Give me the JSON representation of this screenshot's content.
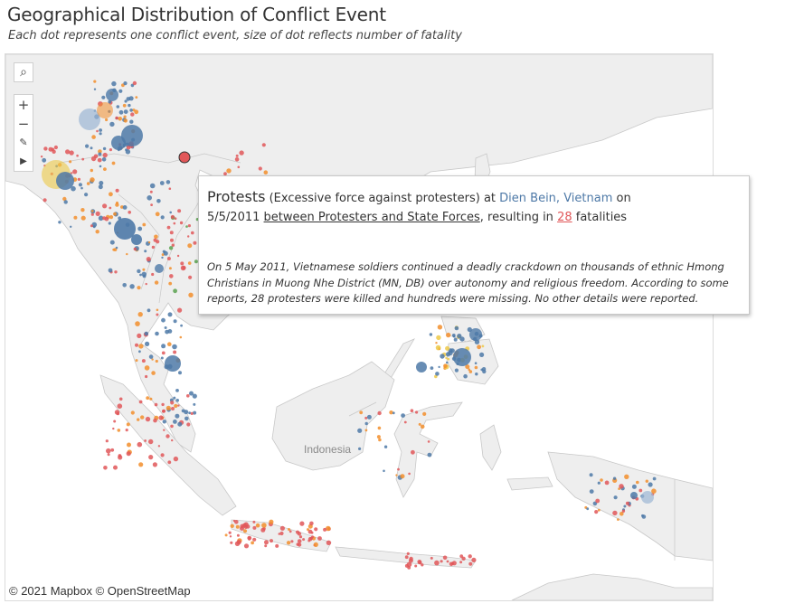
{
  "header": {
    "title": "Geographical Distribution of Conflict Event",
    "subtitle": "Each dot represents one conflict event, size of dot reflects number of fatality"
  },
  "map": {
    "place_label": "Indonesia",
    "attribution": "© 2021 Mapbox © OpenStreetMap",
    "controls": {
      "search": "⌕",
      "zoom_in": "+",
      "zoom_out": "−",
      "pin": "✎",
      "expand": "▶"
    }
  },
  "tooltip": {
    "event_type": "Protests",
    "sub_event_type": "(Excessive force against protesters)",
    "at_word": "at",
    "location": "Dien Bein",
    "country": "Vietnam",
    "on_word": "on",
    "date": "5/5/2011",
    "actors": "between Protesters and State Forces",
    "resulting_in": ", resulting in",
    "fatalities": "28",
    "fatalities_word": "fatalities",
    "notes": "On 5 May 2011, Vietnamese soldiers continued a deadly crackdown on thousands of ethnic Hmong Christians in Muong Nhe District (MN, DB) over autonomy and religious freedom. According to some reports, 28 protesters were killed and hundreds were missing. No other details were reported."
  },
  "colors": {
    "blue": "#4e79a7",
    "orange": "#f28e2b",
    "red": "#e15759",
    "green": "#59a14f",
    "yellow": "#edc948",
    "light_blue": "#9db7d4",
    "land": "#eeeeee",
    "sea": "#ffffff",
    "border": "#c8c8c8"
  }
}
